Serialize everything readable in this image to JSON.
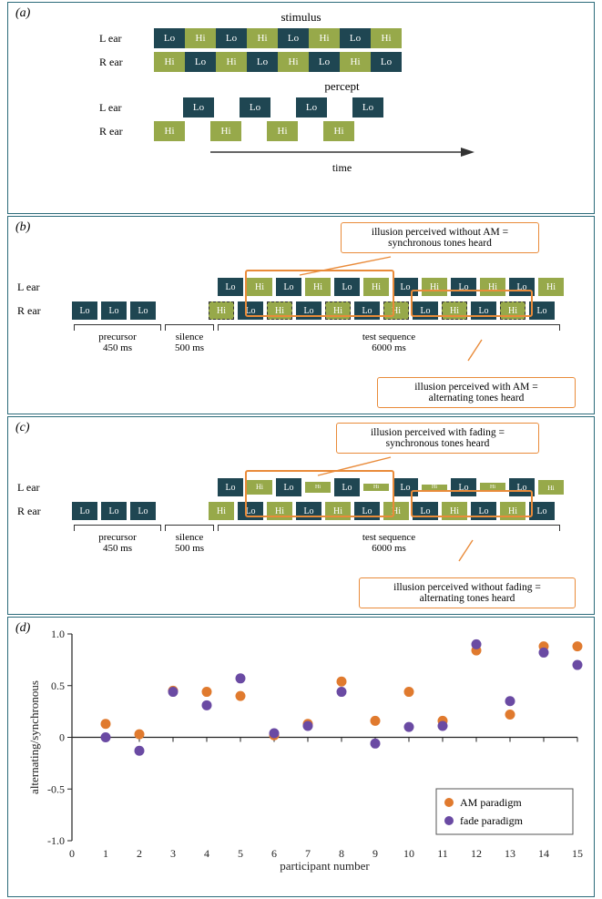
{
  "colors": {
    "lo_bg": "#1f4652",
    "lo_fg": "#ffffff",
    "hi_bg": "#97a94a",
    "hi_fg": "#ffffff",
    "panel_border": "#2c6b7a",
    "callout_border": "#e98b3a",
    "am_color": "#e07a2e",
    "fade_color": "#6a4aa3",
    "axis_color": "#222222"
  },
  "panelA": {
    "label": "(a)",
    "stimulus_title": "stimulus",
    "percept_title": "percept",
    "l_label": "L ear",
    "r_label": "R ear",
    "time_label": "time",
    "stim_L": [
      "Lo",
      "Hi",
      "Lo",
      "Hi",
      "Lo",
      "Hi",
      "Lo",
      "Hi"
    ],
    "stim_R": [
      "Hi",
      "Lo",
      "Hi",
      "Lo",
      "Hi",
      "Lo",
      "Hi",
      "Lo"
    ],
    "percept_L": [
      "Lo",
      "Lo",
      "Lo",
      "Lo"
    ],
    "percept_R": [
      "Hi",
      "Hi",
      "Hi",
      "Hi"
    ]
  },
  "panelB": {
    "label": "(b)",
    "l_label": "L ear",
    "r_label": "R ear",
    "precursor": [
      "Lo",
      "Lo",
      "Lo"
    ],
    "bracket": {
      "precursor": "precursor\n450 ms",
      "silence": "silence\n500 ms",
      "test": "test sequence\n6000 ms"
    },
    "callout_top": "illusion perceived without AM =\nsynchronous tones heard",
    "callout_bottom": "illusion perceived with AM =\nalternating tones heard"
  },
  "panelC": {
    "label": "(c)",
    "l_label": "L ear",
    "r_label": "R ear",
    "bracket": {
      "precursor": "precursor\n450 ms",
      "silence": "silence\n500 ms",
      "test": "test sequence\n6000 ms"
    },
    "callout_top": "illusion perceived with fading =\nsynchronous tones heard",
    "callout_bottom": "illusion perceived without fading =\nalternating tones heard"
  },
  "panelD": {
    "label": "(d)",
    "ylabel": "alternating/synchronous",
    "xlabel": "participant number",
    "ylim": [
      -1.0,
      1.0
    ],
    "yticks": [
      -1.0,
      -0.5,
      0,
      0.5,
      1.0
    ],
    "xticks": [
      0,
      1,
      2,
      3,
      4,
      5,
      6,
      7,
      8,
      9,
      10,
      11,
      12,
      13,
      14,
      15
    ],
    "legend": {
      "am": "AM paradigm",
      "fade": "fade paradigm"
    },
    "series": {
      "am": {
        "color": "#e07a2e",
        "points": [
          [
            1,
            0.13
          ],
          [
            2,
            0.03
          ],
          [
            3,
            0.45
          ],
          [
            4,
            0.44
          ],
          [
            5,
            0.4
          ],
          [
            6,
            0.02
          ],
          [
            7,
            0.13
          ],
          [
            8,
            0.54
          ],
          [
            9,
            0.16
          ],
          [
            10,
            0.44
          ],
          [
            11,
            0.16
          ],
          [
            12,
            0.84
          ],
          [
            13,
            0.22
          ],
          [
            14,
            0.88
          ],
          [
            15,
            0.88
          ]
        ]
      },
      "fade": {
        "color": "#6a4aa3",
        "points": [
          [
            1,
            0.0
          ],
          [
            2,
            -0.13
          ],
          [
            3,
            0.44
          ],
          [
            4,
            0.31
          ],
          [
            5,
            0.57
          ],
          [
            6,
            0.04
          ],
          [
            7,
            0.11
          ],
          [
            8,
            0.44
          ],
          [
            9,
            -0.06
          ],
          [
            10,
            0.1
          ],
          [
            11,
            0.11
          ],
          [
            12,
            0.9
          ],
          [
            13,
            0.35
          ],
          [
            14,
            0.82
          ],
          [
            15,
            0.7
          ]
        ]
      }
    },
    "marker_radius": 5.5
  }
}
